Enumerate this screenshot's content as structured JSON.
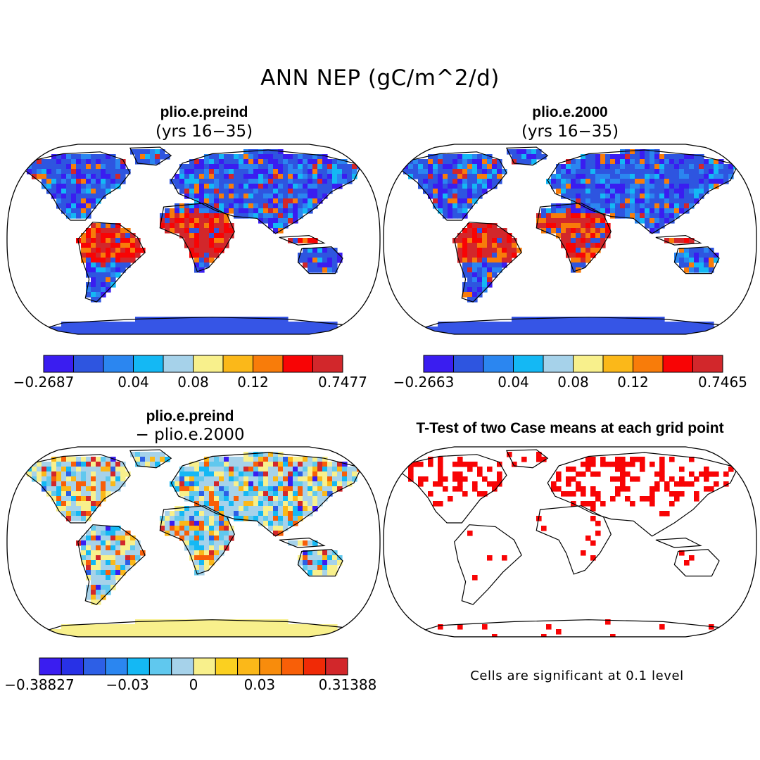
{
  "title": "ANN NEP (gC/m^2/d)",
  "panels": [
    {
      "title": "plio.e.preind",
      "subtitle": "(yrs 16−35)"
    },
    {
      "title": "plio.e.2000",
      "subtitle": "(yrs 16−35)"
    },
    {
      "title": "plio.e.preind",
      "subtitle": "− plio.e.2000"
    },
    {
      "title": "T-Test of two Case means at each grid point",
      "subtitle": ""
    }
  ],
  "colorbars": [
    {
      "colors": [
        "#3a1df0",
        "#2e55e0",
        "#2b86f0",
        "#14b8f4",
        "#a6d2ea",
        "#f8f08c",
        "#fbb819",
        "#f87c0a",
        "#f80405",
        "#d2272b"
      ],
      "labels": [
        {
          "text": "−0.2687",
          "pos": 0
        },
        {
          "text": "0.04",
          "pos": 3
        },
        {
          "text": "0.08",
          "pos": 5
        },
        {
          "text": "0.12",
          "pos": 7
        },
        {
          "text": "0.7477",
          "pos": 10
        }
      ]
    },
    {
      "colors": [
        "#3a1df0",
        "#2e55e0",
        "#2b86f0",
        "#14b8f4",
        "#a6d2ea",
        "#f8f08c",
        "#fbb819",
        "#f87c0a",
        "#f80405",
        "#d2272b"
      ],
      "labels": [
        {
          "text": "−0.2663",
          "pos": 0
        },
        {
          "text": "0.04",
          "pos": 3
        },
        {
          "text": "0.08",
          "pos": 5
        },
        {
          "text": "0.12",
          "pos": 7
        },
        {
          "text": "0.7465",
          "pos": 10
        }
      ]
    },
    {
      "colors": [
        "#3a1df0",
        "#2831e6",
        "#2d5fe6",
        "#2b86f0",
        "#14b8f4",
        "#60c8ee",
        "#a6d2ea",
        "#f8f08c",
        "#fbd020",
        "#fbb819",
        "#f88c0c",
        "#f85f08",
        "#f02a06",
        "#d2272b"
      ],
      "labels": [
        {
          "text": "−0.38827",
          "pos": 0
        },
        {
          "text": "−0.03",
          "pos": 4
        },
        {
          "text": "0",
          "pos": 7
        },
        {
          "text": "0.03",
          "pos": 10
        },
        {
          "text": "0.31388",
          "pos": 14
        }
      ]
    }
  ],
  "note": "Cells are significant at 0.1 level"
}
